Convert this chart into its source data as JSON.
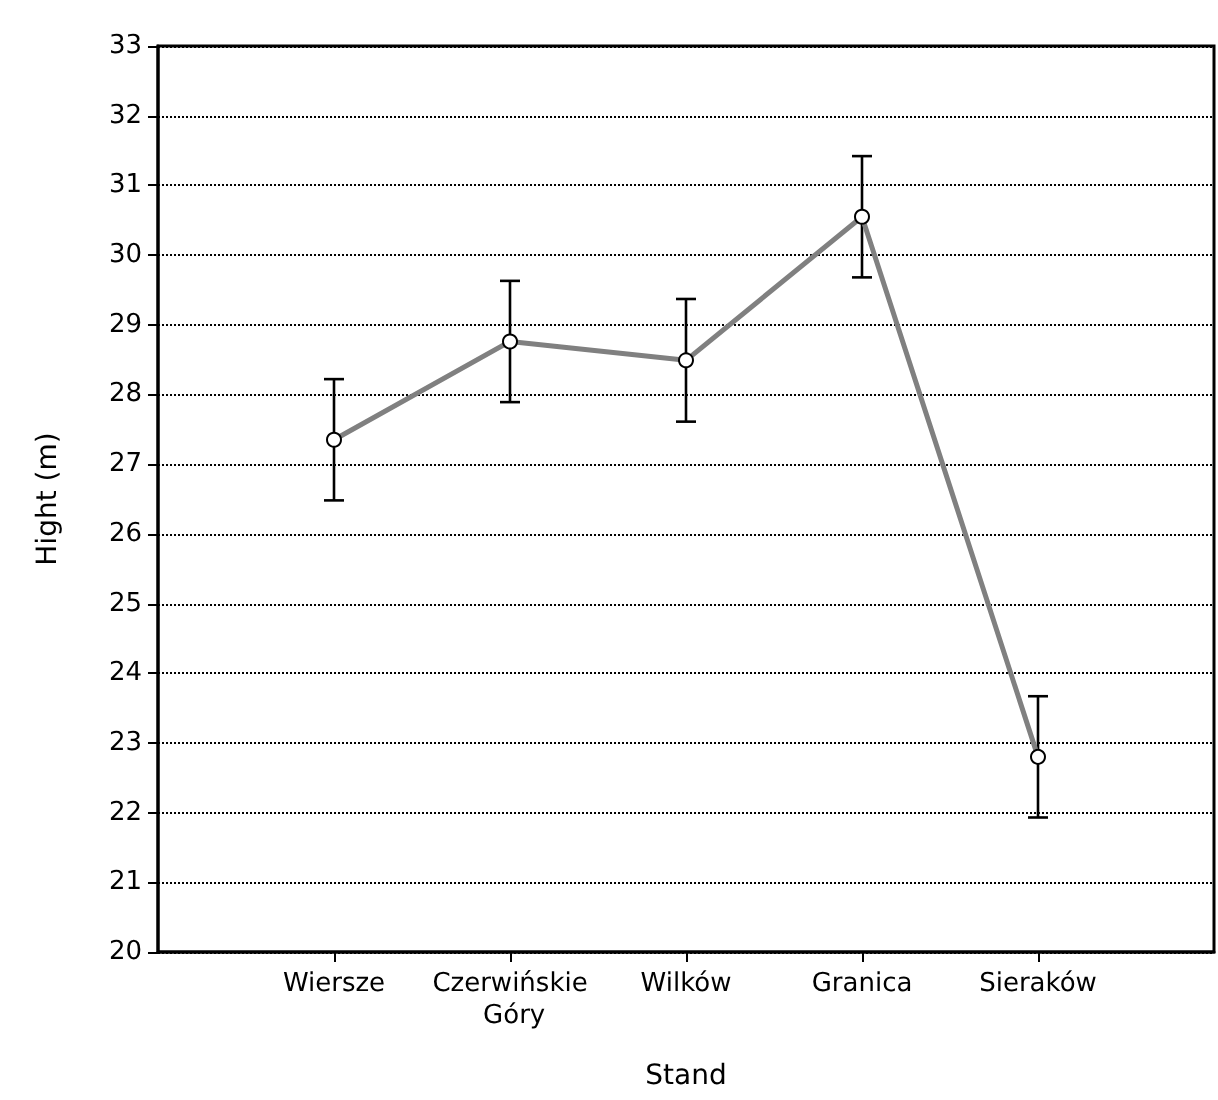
{
  "chart_data": {
    "type": "line",
    "xlabel": "Stand",
    "ylabel": "Hight (m)",
    "categories": [
      "Wiersze",
      "Czerwińskie Góry",
      "Wilków",
      "Granica",
      "Sieraków"
    ],
    "series": [
      {
        "color": "#808080",
        "values": [
          27.35,
          28.76,
          28.49,
          30.55,
          22.8
        ],
        "errors": [
          0.87,
          0.87,
          0.88,
          0.87,
          0.87
        ]
      }
    ],
    "ylim": [
      20,
      33
    ],
    "yticks": [
      20,
      21,
      22,
      23,
      24,
      25,
      26,
      27,
      28,
      29,
      30,
      31,
      32,
      33
    ],
    "grid": "y",
    "marker": "circle",
    "line_style": "solid"
  }
}
